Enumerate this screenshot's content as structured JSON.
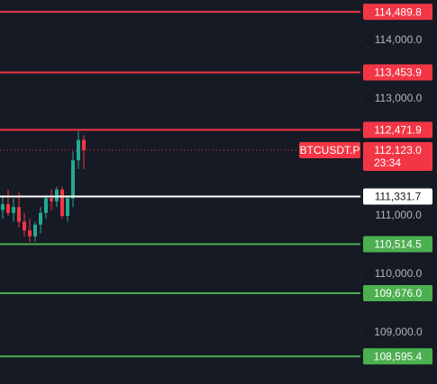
{
  "chart_data": {
    "type": "candlestick",
    "ylim": [
      108123.1,
      114692.3
    ],
    "yticks": [
      {
        "value": 114000,
        "label": "114,000.0"
      },
      {
        "value": 113000,
        "label": "113,000.0"
      },
      {
        "value": 111000,
        "label": "111,000.0"
      },
      {
        "value": 110000,
        "label": "110,000.0"
      },
      {
        "value": 109000,
        "label": "109,000.0"
      }
    ],
    "up_color": "#22ab94",
    "down_color": "#f23645",
    "categories": [
      null,
      null,
      null,
      null,
      null,
      null,
      null,
      null,
      null,
      null,
      null,
      null,
      null,
      null,
      null,
      null
    ],
    "candles": [
      {
        "open": 111100,
        "high": 111350,
        "low": 110950,
        "close": 111200
      },
      {
        "open": 111200,
        "high": 111450,
        "low": 111000,
        "close": 111050
      },
      {
        "open": 111050,
        "high": 111300,
        "low": 110900,
        "close": 111150
      },
      {
        "open": 111150,
        "high": 111400,
        "low": 110800,
        "close": 110900
      },
      {
        "open": 110900,
        "high": 111050,
        "low": 110650,
        "close": 110750
      },
      {
        "open": 110750,
        "high": 110950,
        "low": 110550,
        "close": 110650
      },
      {
        "open": 110650,
        "high": 110900,
        "low": 110560,
        "close": 110850
      },
      {
        "open": 110850,
        "high": 111150,
        "low": 110700,
        "close": 111050
      },
      {
        "open": 111050,
        "high": 111350,
        "low": 110950,
        "close": 111300
      },
      {
        "open": 111300,
        "high": 111450,
        "low": 111100,
        "close": 111250
      },
      {
        "open": 111250,
        "high": 111500,
        "low": 111150,
        "close": 111450
      },
      {
        "open": 111450,
        "high": 111500,
        "low": 110950,
        "close": 111000
      },
      {
        "open": 111000,
        "high": 111350,
        "low": 110900,
        "close": 111300
      },
      {
        "open": 111300,
        "high": 112100,
        "low": 111150,
        "close": 111950
      },
      {
        "open": 111950,
        "high": 112450,
        "low": 111800,
        "close": 112300
      },
      {
        "open": 112300,
        "high": 112380,
        "low": 111800,
        "close": 112123
      }
    ],
    "levels": [
      {
        "value": 114489.8,
        "label": "114,489.8",
        "color": "#f23645",
        "text_color": "#ffffff"
      },
      {
        "value": 113453.9,
        "label": "113,453.9",
        "color": "#f23645",
        "text_color": "#ffffff"
      },
      {
        "value": 112471.9,
        "label": "112,471.9",
        "color": "#f23645",
        "text_color": "#ffffff"
      },
      {
        "value": 111331.7,
        "label": "111,331.7",
        "color": "#ffffff",
        "text_color": "#131722"
      },
      {
        "value": 110514.5,
        "label": "110,514.5",
        "color": "#4caf50",
        "text_color": "#ffffff"
      },
      {
        "value": 109676.0,
        "label": "109,676.0",
        "color": "#4caf50",
        "text_color": "#ffffff"
      },
      {
        "value": 108595.4,
        "label": "108,595.4",
        "color": "#4caf50",
        "text_color": "#ffffff"
      }
    ],
    "last_price": {
      "value": 112123.0,
      "label": "112,123.0"
    },
    "symbol": "BTCUSDT.P",
    "countdown": "23:34"
  }
}
